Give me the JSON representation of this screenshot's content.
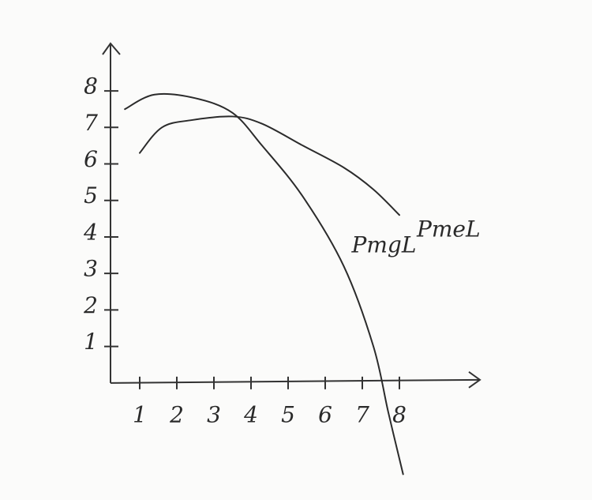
{
  "chart_data": {
    "type": "line",
    "series": [
      {
        "name": "PmgL",
        "color": "#2b2b2b",
        "x": [
          0.6,
          1.4,
          2.5,
          3.5,
          4.3,
          5.4,
          6.5,
          7.3,
          7.7,
          8.1
        ],
        "values": [
          7.5,
          7.9,
          7.8,
          7.4,
          6.5,
          5.1,
          3.2,
          1.0,
          -0.8,
          -2.5
        ]
      },
      {
        "name": "PmeL",
        "color": "#2b2b2b",
        "x": [
          1,
          1.6,
          2.4,
          3.5,
          4.3,
          5.4,
          6.5,
          7.3,
          8.0
        ],
        "values": [
          6.3,
          7.0,
          7.2,
          7.3,
          7.1,
          6.5,
          5.9,
          5.3,
          4.6
        ]
      }
    ],
    "xlim": [
      0,
      10
    ],
    "xticks": [
      1,
      2,
      3,
      4,
      5,
      6,
      7,
      8
    ],
    "ylim": [
      -2.6,
      9.3
    ],
    "yticks": [
      1,
      2,
      3,
      4,
      5,
      6,
      7,
      8
    ]
  }
}
